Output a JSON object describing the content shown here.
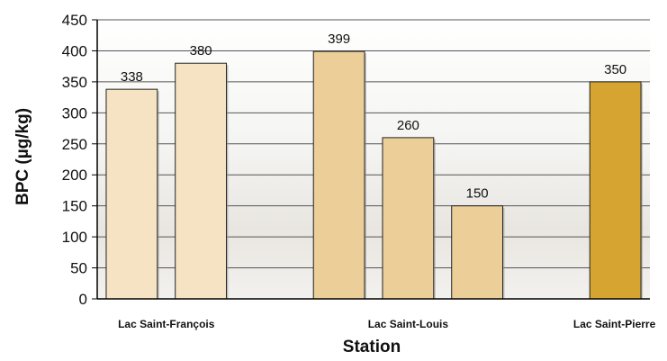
{
  "chart_data": {
    "type": "bar",
    "xlabel": "Station",
    "ylabel": "BPC (µg/kg)",
    "ylim": [
      0,
      450
    ],
    "yticks": [
      0,
      50,
      100,
      150,
      200,
      250,
      300,
      350,
      400,
      450
    ],
    "grid": true,
    "groups": [
      {
        "label": "Lac Saint-François",
        "bars": 2
      },
      {
        "label": "Lac Saint-Louis",
        "bars": 3
      },
      {
        "label": "Lac Saint-Pierre",
        "bars": 1
      }
    ],
    "values": [
      338,
      380,
      399,
      260,
      150,
      350
    ],
    "data_labels": [
      "338",
      "380",
      "399",
      "260",
      "150",
      "350"
    ],
    "colors": [
      "#f6e3c4",
      "#f6e3c4",
      "#ecce98",
      "#ecce98",
      "#ecce98",
      "#d6a430"
    ]
  }
}
